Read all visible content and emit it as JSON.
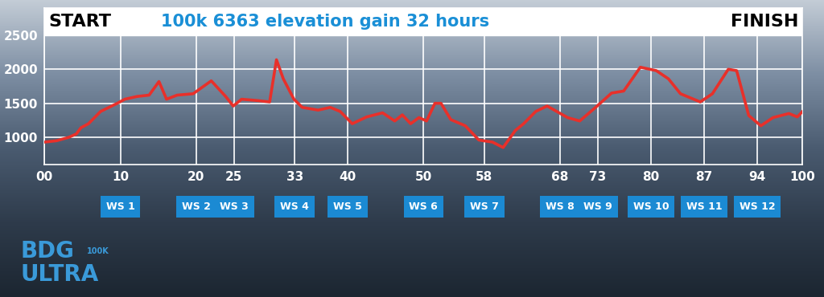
{
  "chart_data": {
    "type": "line",
    "title": "100k 6363 elevation gain 32 hours",
    "corner_labels": {
      "left": "START",
      "right": "FINISH"
    },
    "x": [
      0,
      1.6,
      3.2,
      4.2,
      4.8,
      5.8,
      7.4,
      8.5,
      9.6,
      10.6,
      12.2,
      13.8,
      15.1,
      16.1,
      17.5,
      19.6,
      22.0,
      23.9,
      24.9,
      26.0,
      28.1,
      29.7,
      30.6,
      31.5,
      32.9,
      34.0,
      36.1,
      37.7,
      39.0,
      40.6,
      42.5,
      44.6,
      46.2,
      47.2,
      48.3,
      49.4,
      50.4,
      51.5,
      52.3,
      53.6,
      55.5,
      57.3,
      59.1,
      60.5,
      62.1,
      63.2,
      64.8,
      66.3,
      69.0,
      70.6,
      72.7,
      74.8,
      76.4,
      78.6,
      80.7,
      82.3,
      83.9,
      86.5,
      88.1,
      90.2,
      91.3,
      92.9,
      94.5,
      96.1,
      98.2,
      99.3,
      100
    ],
    "values": [
      930,
      950,
      1000,
      1050,
      1140,
      1200,
      1380,
      1440,
      1500,
      1560,
      1600,
      1620,
      1820,
      1560,
      1620,
      1640,
      1830,
      1600,
      1460,
      1560,
      1540,
      1520,
      2140,
      1860,
      1560,
      1440,
      1400,
      1440,
      1380,
      1200,
      1300,
      1360,
      1240,
      1330,
      1200,
      1290,
      1240,
      1500,
      1500,
      1260,
      1170,
      960,
      930,
      850,
      1100,
      1200,
      1380,
      1460,
      1290,
      1240,
      1440,
      1650,
      1680,
      2030,
      1980,
      1860,
      1640,
      1520,
      1640,
      2000,
      1980,
      1320,
      1170,
      1290,
      1350,
      1300,
      1380
    ],
    "color": "#e8302a",
    "xlim": [
      0,
      100
    ],
    "xticks": [
      {
        "value": 0,
        "label": "00"
      },
      10,
      20,
      25,
      33,
      40,
      50,
      58,
      68,
      73,
      80,
      87,
      94,
      100
    ],
    "ylim": [
      600,
      2900
    ],
    "yticks": [
      1000,
      1500,
      2000,
      2500
    ],
    "grid": true,
    "water_stations": [
      {
        "label": "WS 1",
        "km": 10
      },
      {
        "label": "WS 2",
        "km": 20
      },
      {
        "label": "WS 3",
        "km": 25
      },
      {
        "label": "WS 4",
        "km": 33
      },
      {
        "label": "WS 5",
        "km": 40
      },
      {
        "label": "WS 6",
        "km": 50
      },
      {
        "label": "WS 7",
        "km": 58
      },
      {
        "label": "WS 8",
        "km": 68
      },
      {
        "label": "WS 9",
        "km": 73
      },
      {
        "label": "WS 10",
        "km": 80
      },
      {
        "label": "WS 11",
        "km": 87
      },
      {
        "label": "WS 12",
        "km": 94
      }
    ],
    "logo": [
      "BDG",
      "100K",
      "ULTRA"
    ]
  }
}
